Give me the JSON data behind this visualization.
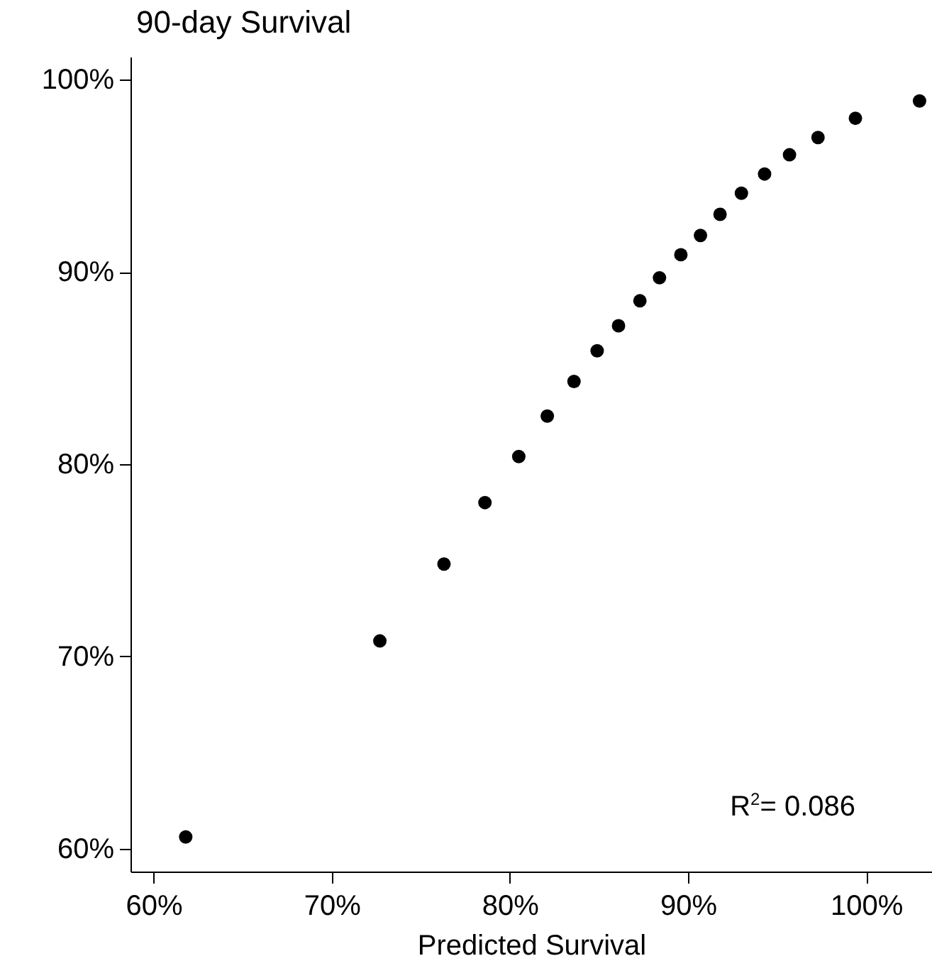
{
  "chart_data": {
    "type": "scatter",
    "title": "90-day Survival",
    "xlabel": "Predicted Survival",
    "x": [
      61.8,
      72.7,
      76.3,
      78.6,
      80.5,
      82.1,
      83.6,
      84.9,
      86.1,
      87.3,
      88.4,
      89.6,
      90.7,
      91.8,
      93.0,
      94.3,
      95.7,
      97.3,
      99.4,
      103.0
    ],
    "values": [
      60.6,
      70.8,
      74.8,
      78.0,
      80.4,
      82.5,
      84.3,
      85.9,
      87.2,
      88.5,
      89.7,
      90.9,
      91.9,
      93.0,
      94.1,
      95.1,
      96.1,
      97.0,
      98.0,
      98.9
    ],
    "color": "#000000",
    "marker": "circle",
    "xlim": [
      58.7,
      103.7
    ],
    "ylim": [
      58.8,
      101.2
    ],
    "xticks": [
      {
        "value": 60,
        "label": "60%"
      },
      {
        "value": 70,
        "label": "70%"
      },
      {
        "value": 80,
        "label": "80%"
      },
      {
        "value": 90,
        "label": "90%"
      },
      {
        "value": 100,
        "label": "100%"
      }
    ],
    "yticks": [
      {
        "value": 60,
        "label": "60%"
      },
      {
        "value": 70,
        "label": "70%"
      },
      {
        "value": 80,
        "label": "80%"
      },
      {
        "value": 90,
        "label": "90%"
      },
      {
        "value": 100,
        "label": "100%"
      }
    ],
    "annotations": [
      "R$^{2}$= 0.086"
    ]
  }
}
